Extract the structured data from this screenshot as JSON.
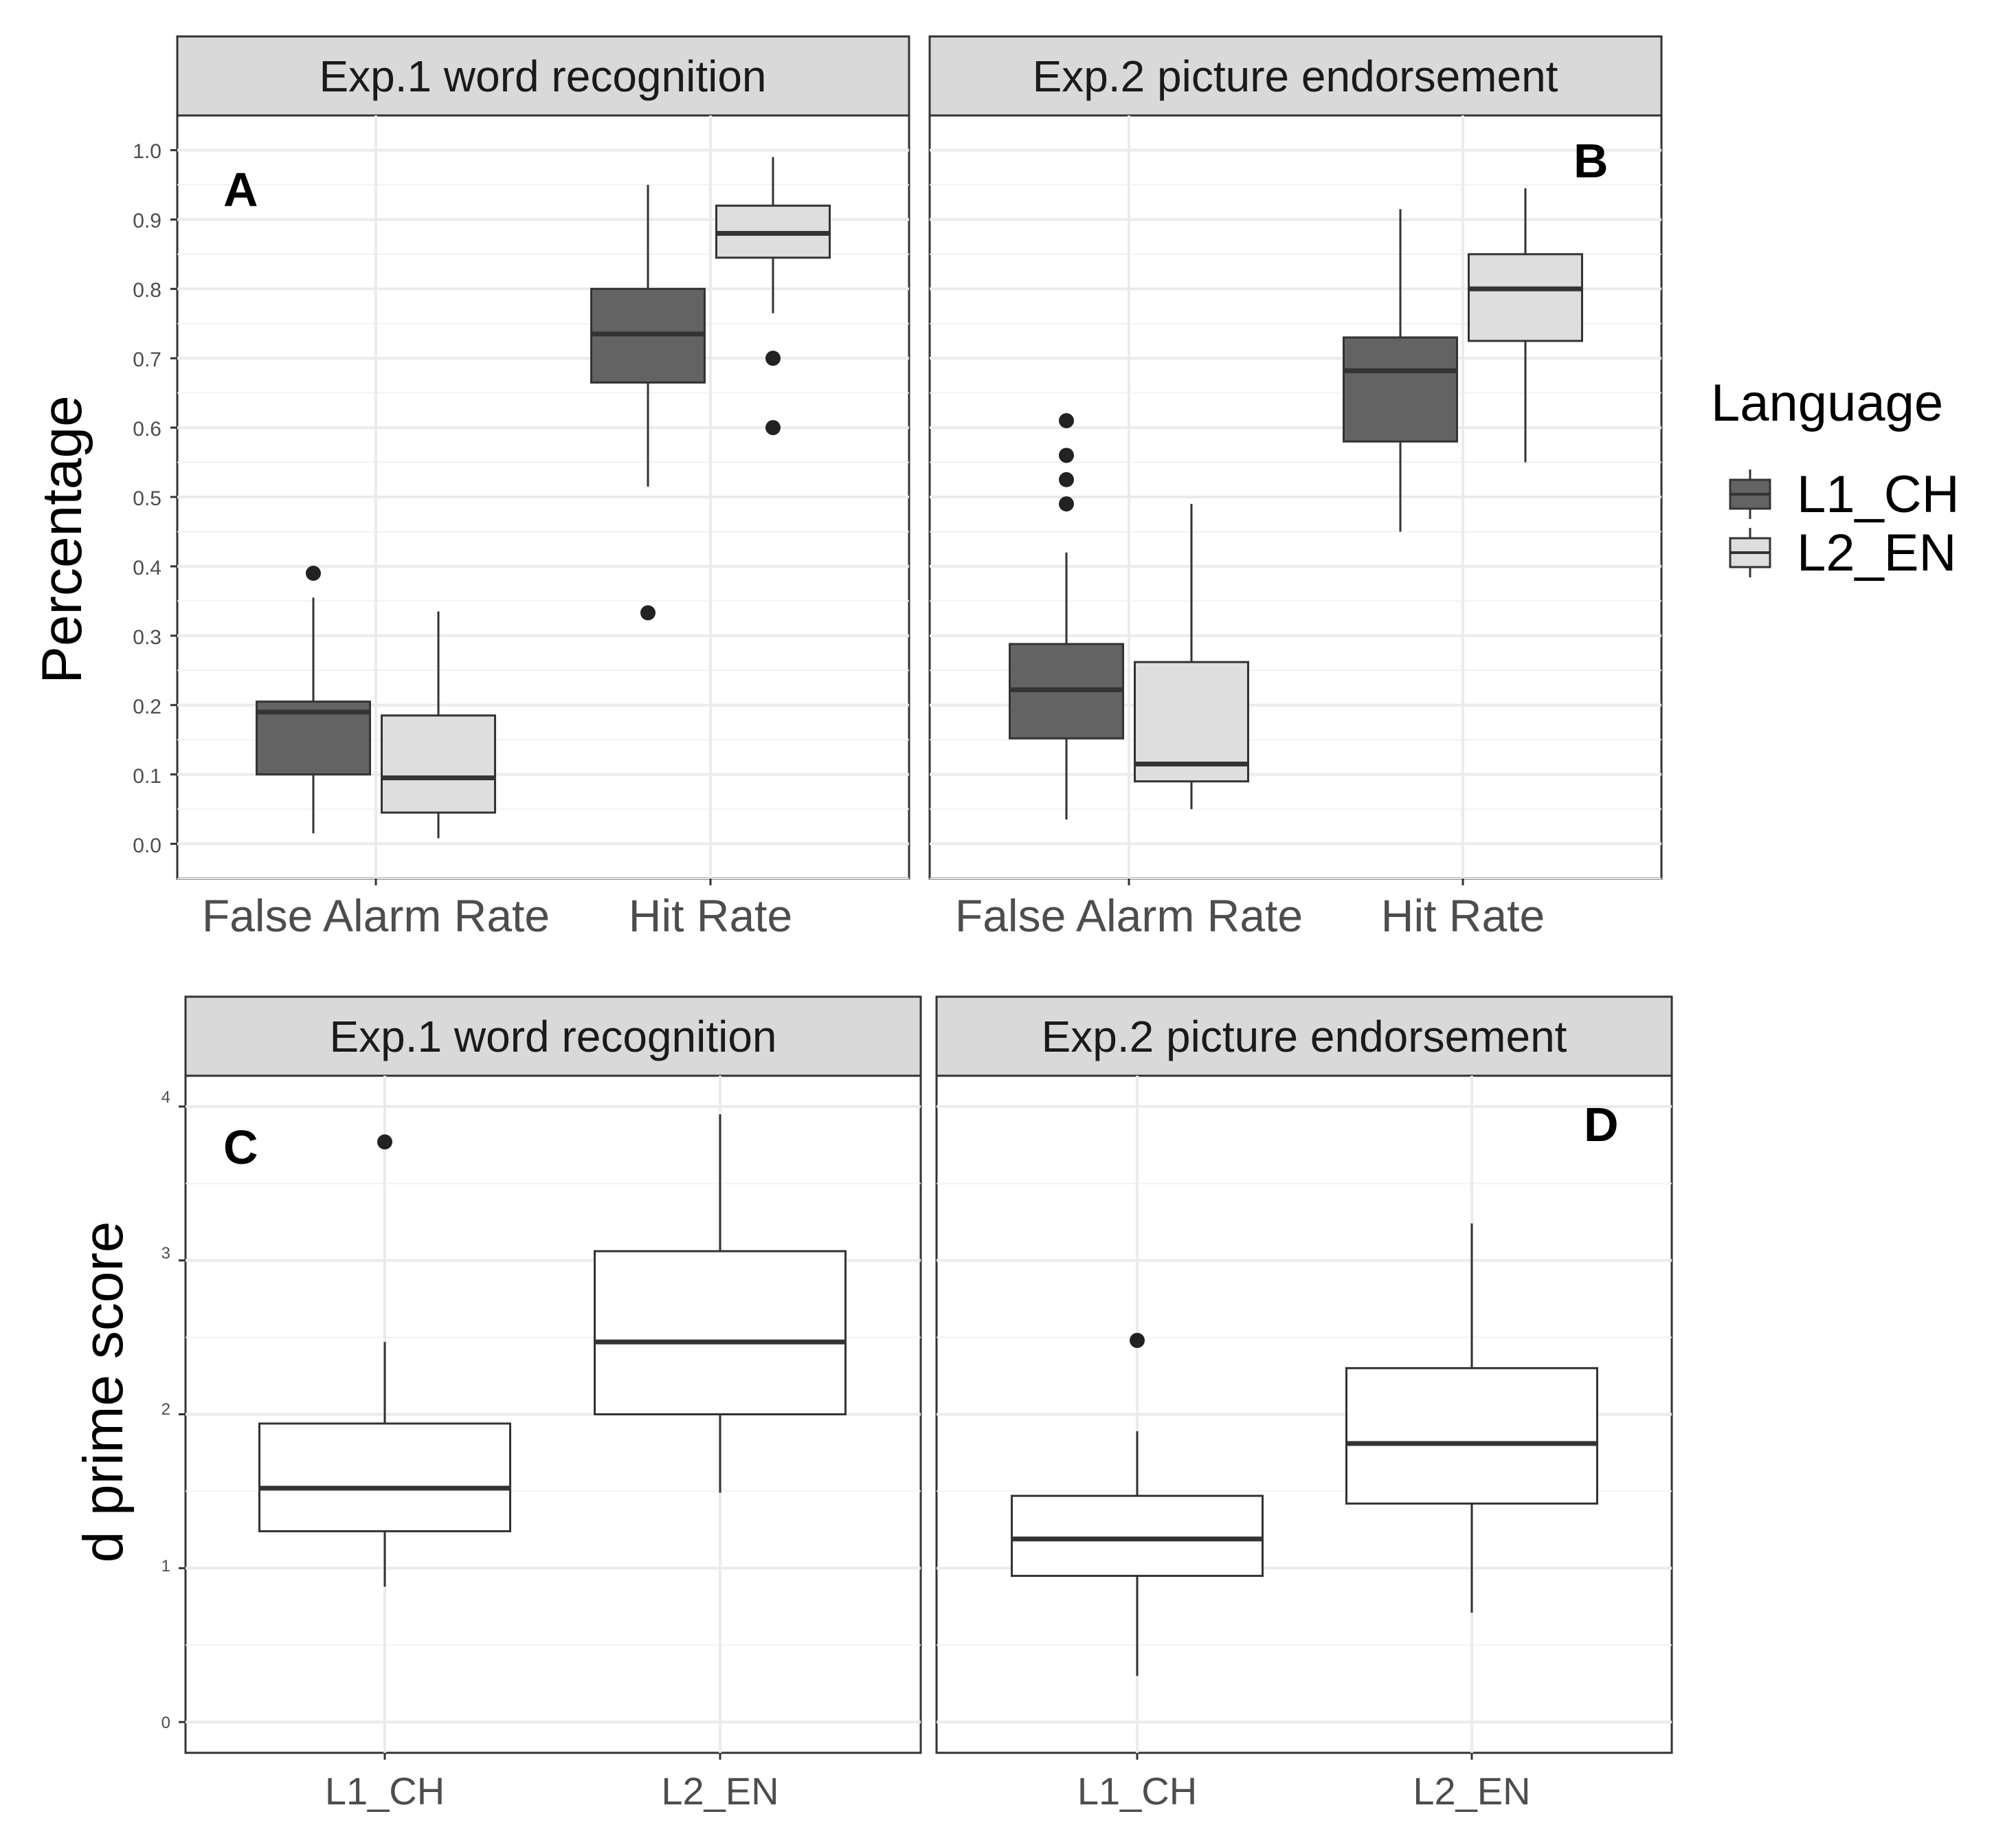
{
  "colors": {
    "L1_CH": "#636363",
    "L2_EN": "#dedede",
    "white_box": "#ffffff",
    "strip": "#d9d9d9",
    "grid": "#ebebeb",
    "stroke": "#333333"
  },
  "chart_data": [
    {
      "id": "A",
      "type": "boxplot",
      "panel_letter": "A",
      "strip_title": "Exp.1 word recognition",
      "ylabel": "Percentage",
      "ylim": [
        -0.05,
        1.05
      ],
      "yticks": [
        "0.0",
        "0.1",
        "0.2",
        "0.3",
        "0.4",
        "0.5",
        "0.6",
        "0.7",
        "0.8",
        "0.9",
        "1.0"
      ],
      "categories": [
        "False Alarm Rate",
        "Hit Rate"
      ],
      "grouped": true,
      "boxes": [
        {
          "category": "False Alarm Rate",
          "group": "L1_CH",
          "whisker_low": 0.015,
          "q1": 0.1,
          "median": 0.19,
          "q3": 0.205,
          "whisker_high": 0.355,
          "outliers": [
            0.39
          ]
        },
        {
          "category": "False Alarm Rate",
          "group": "L2_EN",
          "whisker_low": 0.008,
          "q1": 0.045,
          "median": 0.095,
          "q3": 0.185,
          "whisker_high": 0.335,
          "outliers": []
        },
        {
          "category": "Hit Rate",
          "group": "L1_CH",
          "whisker_low": 0.515,
          "q1": 0.665,
          "median": 0.735,
          "q3": 0.8,
          "whisker_high": 0.95,
          "outliers": [
            0.333
          ]
        },
        {
          "category": "Hit Rate",
          "group": "L2_EN",
          "whisker_low": 0.765,
          "q1": 0.845,
          "median": 0.88,
          "q3": 0.92,
          "whisker_high": 0.99,
          "outliers": [
            0.7,
            0.6
          ]
        }
      ]
    },
    {
      "id": "B",
      "type": "boxplot",
      "panel_letter": "B",
      "strip_title": "Exp.2 picture endorsement",
      "ylim": [
        -0.05,
        1.05
      ],
      "categories": [
        "False Alarm Rate",
        "Hit Rate"
      ],
      "grouped": true,
      "boxes": [
        {
          "category": "False Alarm Rate",
          "group": "L1_CH",
          "whisker_low": 0.035,
          "q1": 0.152,
          "median": 0.222,
          "q3": 0.288,
          "whisker_high": 0.42,
          "outliers": [
            0.61,
            0.56,
            0.525,
            0.49
          ]
        },
        {
          "category": "False Alarm Rate",
          "group": "L2_EN",
          "whisker_low": 0.05,
          "q1": 0.09,
          "median": 0.115,
          "q3": 0.262,
          "whisker_high": 0.49,
          "outliers": []
        },
        {
          "category": "Hit Rate",
          "group": "L1_CH",
          "whisker_low": 0.45,
          "q1": 0.58,
          "median": 0.682,
          "q3": 0.73,
          "whisker_high": 0.915,
          "outliers": []
        },
        {
          "category": "Hit Rate",
          "group": "L2_EN",
          "whisker_low": 0.55,
          "q1": 0.725,
          "median": 0.8,
          "q3": 0.85,
          "whisker_high": 0.945,
          "outliers": []
        }
      ]
    },
    {
      "id": "C",
      "type": "boxplot",
      "panel_letter": "C",
      "strip_title": "Exp.1 word recognition",
      "ylabel": "d prime score",
      "ylim": [
        -0.2,
        4.2
      ],
      "yticks": [
        "0",
        "1",
        "2",
        "3",
        "4"
      ],
      "categories": [
        "L1_CH",
        "L2_EN"
      ],
      "grouped": false,
      "boxes": [
        {
          "category": "L1_CH",
          "whisker_low": 0.88,
          "q1": 1.24,
          "median": 1.52,
          "q3": 1.94,
          "whisker_high": 2.47,
          "outliers": [
            3.77
          ]
        },
        {
          "category": "L2_EN",
          "whisker_low": 1.49,
          "q1": 2.0,
          "median": 2.47,
          "q3": 3.06,
          "whisker_high": 3.95,
          "outliers": []
        }
      ]
    },
    {
      "id": "D",
      "type": "boxplot",
      "panel_letter": "D",
      "strip_title": "Exp.2 picture endorsement",
      "ylim": [
        -0.2,
        4.2
      ],
      "categories": [
        "L1_CH",
        "L2_EN"
      ],
      "grouped": false,
      "boxes": [
        {
          "category": "L1_CH",
          "whisker_low": 0.3,
          "q1": 0.95,
          "median": 1.19,
          "q3": 1.47,
          "whisker_high": 1.89,
          "outliers": [
            2.48
          ]
        },
        {
          "category": "L2_EN",
          "whisker_low": 0.71,
          "q1": 1.42,
          "median": 1.81,
          "q3": 2.3,
          "whisker_high": 3.24,
          "outliers": []
        }
      ]
    }
  ],
  "legend": {
    "title": "Language",
    "entries": [
      {
        "label": "L1_CH",
        "color": "#636363"
      },
      {
        "label": "L2_EN",
        "color": "#dedede"
      }
    ]
  }
}
